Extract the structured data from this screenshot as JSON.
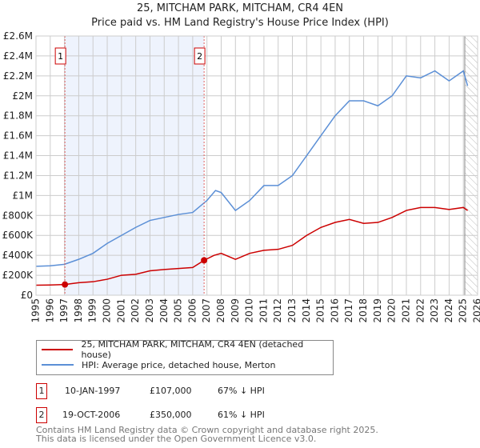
{
  "title": "25, MITCHAM PARK, MITCHAM, CR4 4EN",
  "subtitle": "Price paid vs. HM Land Registry's House Price Index (HPI)",
  "chart_data": {
    "type": "line",
    "xlim": [
      1995,
      2026
    ],
    "ylim": [
      0,
      2600000
    ],
    "yticks": [
      0,
      200000,
      400000,
      600000,
      800000,
      1000000,
      1200000,
      1400000,
      1600000,
      1800000,
      2000000,
      2200000,
      2400000,
      2600000
    ],
    "ytick_labels": [
      "£0",
      "£200K",
      "£400K",
      "£600K",
      "£800K",
      "£1M",
      "£1.2M",
      "£1.4M",
      "£1.6M",
      "£1.8M",
      "£2M",
      "£2.2M",
      "£2.4M",
      "£2.6M"
    ],
    "xticks": [
      1995,
      1996,
      1997,
      1998,
      1999,
      2000,
      2001,
      2002,
      2003,
      2004,
      2005,
      2006,
      2007,
      2008,
      2009,
      2010,
      2011,
      2012,
      2013,
      2014,
      2015,
      2016,
      2017,
      2018,
      2019,
      2020,
      2021,
      2022,
      2023,
      2024,
      2025,
      2026
    ],
    "series": [
      {
        "name": "25, MITCHAM PARK, MITCHAM, CR4 4EN (detached house)",
        "color": "#cc0000",
        "x": [
          1995,
          1996,
          1997.03,
          1998,
          1999,
          2000,
          2001,
          2002,
          2003,
          2004,
          2005,
          2006,
          2006.8,
          2007.5,
          2008,
          2009,
          2010,
          2011,
          2012,
          2013,
          2014,
          2015,
          2016,
          2017,
          2018,
          2019,
          2020,
          2021,
          2022,
          2023,
          2024,
          2025,
          2025.3
        ],
        "y": [
          100000,
          102000,
          107000,
          125000,
          135000,
          160000,
          200000,
          210000,
          245000,
          258000,
          268000,
          278000,
          350000,
          400000,
          420000,
          360000,
          420000,
          450000,
          460000,
          500000,
          600000,
          680000,
          730000,
          760000,
          720000,
          730000,
          780000,
          850000,
          880000,
          880000,
          860000,
          880000,
          850000
        ]
      },
      {
        "name": "HPI: Average price, detached house, Merton",
        "color": "#5b8fd6",
        "x": [
          1995,
          1996,
          1997,
          1998,
          1999,
          2000,
          2001,
          2002,
          2003,
          2004,
          2005,
          2006,
          2007,
          2007.6,
          2008,
          2009,
          2010,
          2011,
          2012,
          2013,
          2014,
          2015,
          2016,
          2017,
          2018,
          2019,
          2020,
          2021,
          2022,
          2023,
          2024,
          2025,
          2025.3
        ],
        "y": [
          290000,
          295000,
          310000,
          360000,
          420000,
          520000,
          600000,
          680000,
          750000,
          780000,
          810000,
          830000,
          950000,
          1050000,
          1030000,
          850000,
          950000,
          1100000,
          1100000,
          1200000,
          1400000,
          1600000,
          1800000,
          1950000,
          1950000,
          1900000,
          2000000,
          2200000,
          2180000,
          2250000,
          2150000,
          2250000,
          2100000
        ]
      }
    ],
    "sales": [
      {
        "label": "1",
        "x": 1997.03,
        "y": 107000
      },
      {
        "label": "2",
        "x": 2006.8,
        "y": 350000
      }
    ],
    "forecast_start": 2025.1
  },
  "legend": [
    "25, MITCHAM PARK, MITCHAM, CR4 4EN (detached house)",
    "HPI: Average price, detached house, Merton"
  ],
  "transactions": [
    {
      "num": "1",
      "date": "10-JAN-1997",
      "price": "£107,000",
      "hpi": "67% ↓ HPI"
    },
    {
      "num": "2",
      "date": "19-OCT-2006",
      "price": "£350,000",
      "hpi": "61% ↓ HPI"
    }
  ],
  "footer": [
    "Contains HM Land Registry data © Crown copyright and database right 2025.",
    "This data is licensed under the Open Government Licence v3.0."
  ]
}
